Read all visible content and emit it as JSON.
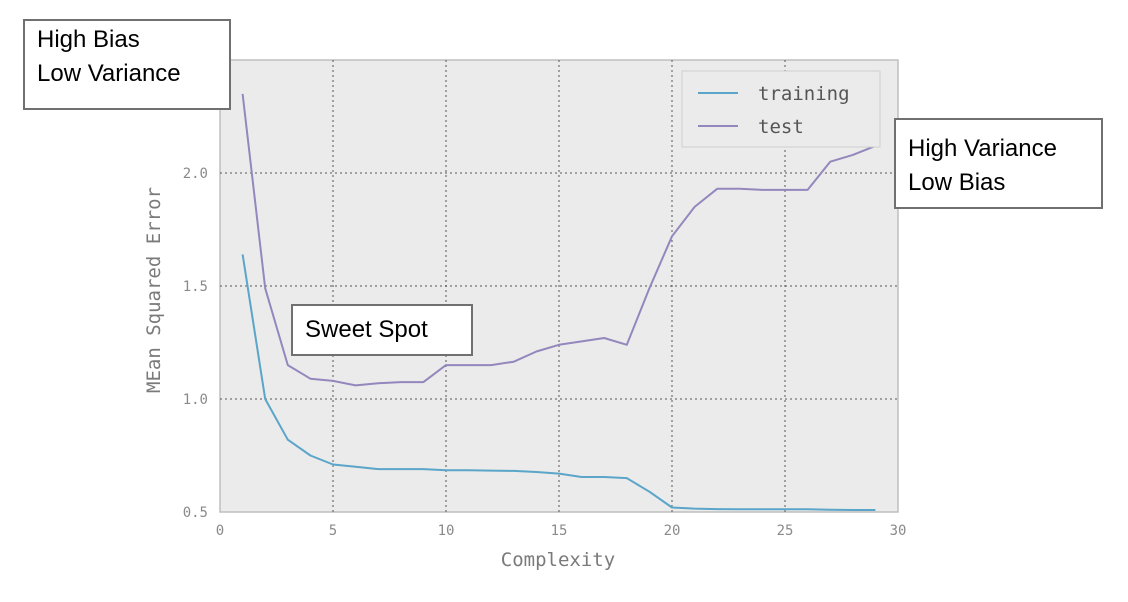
{
  "chart_data": {
    "type": "line",
    "xlabel": "Complexity",
    "ylabel": "MEan Squared Error",
    "xlim": [
      0,
      30
    ],
    "ylim": [
      0.5,
      2.5
    ],
    "xticks": [
      0,
      5,
      10,
      15,
      20,
      25,
      30
    ],
    "yticks": [
      0.5,
      1.0,
      1.5,
      2.0
    ],
    "ytick_labels": [
      "0.5",
      "1.0",
      "1.5",
      "2.0"
    ],
    "grid": true,
    "legend_position": "upper-right",
    "x": [
      1,
      2,
      3,
      4,
      5,
      6,
      7,
      8,
      9,
      10,
      11,
      12,
      13,
      14,
      15,
      16,
      17,
      18,
      19,
      20,
      21,
      22,
      23,
      24,
      25,
      26,
      27,
      28,
      29
    ],
    "series": [
      {
        "name": "training",
        "color": "#5aa5c9",
        "values": [
          1.64,
          1.0,
          0.82,
          0.75,
          0.71,
          0.7,
          0.69,
          0.69,
          0.69,
          0.685,
          0.685,
          0.683,
          0.682,
          0.677,
          0.67,
          0.655,
          0.655,
          0.65,
          0.59,
          0.52,
          0.515,
          0.513,
          0.512,
          0.512,
          0.512,
          0.512,
          0.51,
          0.509,
          0.509
        ]
      },
      {
        "name": "test",
        "color": "#9487bd",
        "values": [
          2.35,
          1.49,
          1.15,
          1.09,
          1.08,
          1.06,
          1.07,
          1.075,
          1.075,
          1.15,
          1.15,
          1.15,
          1.165,
          1.21,
          1.24,
          1.255,
          1.27,
          1.24,
          1.49,
          1.72,
          1.85,
          1.93,
          1.93,
          1.925,
          1.925,
          1.925,
          2.05,
          2.08,
          2.12
        ]
      }
    ]
  },
  "annotations": {
    "high_bias": [
      "High Bias",
      "Low Variance"
    ],
    "high_variance": [
      "High Variance",
      "Low Bias"
    ],
    "sweet_spot": "Sweet Spot"
  },
  "colors": {
    "plot_background": "#ebebeb",
    "frame": "#bfbfbf",
    "grid": "#555555",
    "annotation_border": "#707070"
  }
}
